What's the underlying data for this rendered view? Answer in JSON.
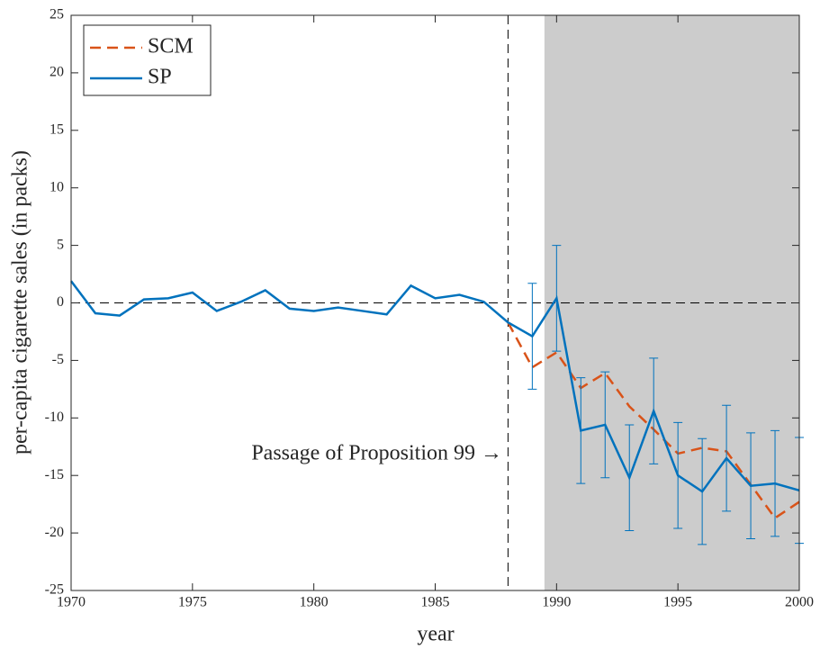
{
  "chart_data": {
    "type": "line",
    "xlabel": "year",
    "ylabel": "per-capita cigarette sales (in packs)",
    "annotation": "Passage of Proposition 99 →",
    "x": [
      1970,
      1971,
      1972,
      1973,
      1974,
      1975,
      1976,
      1977,
      1978,
      1979,
      1980,
      1981,
      1982,
      1983,
      1984,
      1985,
      1986,
      1987,
      1988,
      1989,
      1990,
      1991,
      1992,
      1993,
      1994,
      1995,
      1996,
      1997,
      1998,
      1999,
      2000
    ],
    "series": [
      {
        "name": "SCM",
        "color": "#d95319",
        "dash": true,
        "values": [
          null,
          null,
          null,
          null,
          null,
          null,
          null,
          null,
          null,
          null,
          null,
          null,
          null,
          null,
          null,
          null,
          null,
          null,
          -1.7,
          -5.6,
          -4.3,
          -7.4,
          -6.1,
          -9.0,
          -11.0,
          -13.1,
          -12.6,
          -12.9,
          -15.8,
          -18.7,
          -17.3
        ]
      },
      {
        "name": "SP",
        "color": "#0072bd",
        "dash": false,
        "values": [
          1.9,
          -0.9,
          -1.1,
          0.3,
          0.4,
          0.9,
          -0.7,
          0.1,
          1.1,
          -0.5,
          -0.7,
          -0.4,
          -0.7,
          -1.0,
          1.5,
          0.4,
          0.7,
          0.1,
          -1.7,
          -2.9,
          0.4,
          -11.1,
          -10.6,
          -15.2,
          -9.4,
          -15.0,
          -16.4,
          -13.5,
          -15.9,
          -15.7,
          -16.3
        ],
        "errors": [
          null,
          null,
          null,
          null,
          null,
          null,
          null,
          null,
          null,
          null,
          null,
          null,
          null,
          null,
          null,
          null,
          null,
          null,
          null,
          4.6,
          4.6,
          4.6,
          4.6,
          4.6,
          4.6,
          4.6,
          4.6,
          4.6,
          4.6,
          4.6,
          4.6
        ]
      }
    ],
    "xlim": [
      1970,
      2000
    ],
    "xticks": [
      1970,
      1975,
      1980,
      1985,
      1990,
      1995,
      2000
    ],
    "ylim": [
      -25,
      25
    ],
    "yticks": [
      -25,
      -20,
      -15,
      -10,
      -5,
      0,
      5,
      10,
      15,
      20,
      25
    ],
    "vline": 1988,
    "hline": 0,
    "shade_start": 1989.5,
    "shade_color": "#cccccc",
    "legend": "upper left"
  }
}
